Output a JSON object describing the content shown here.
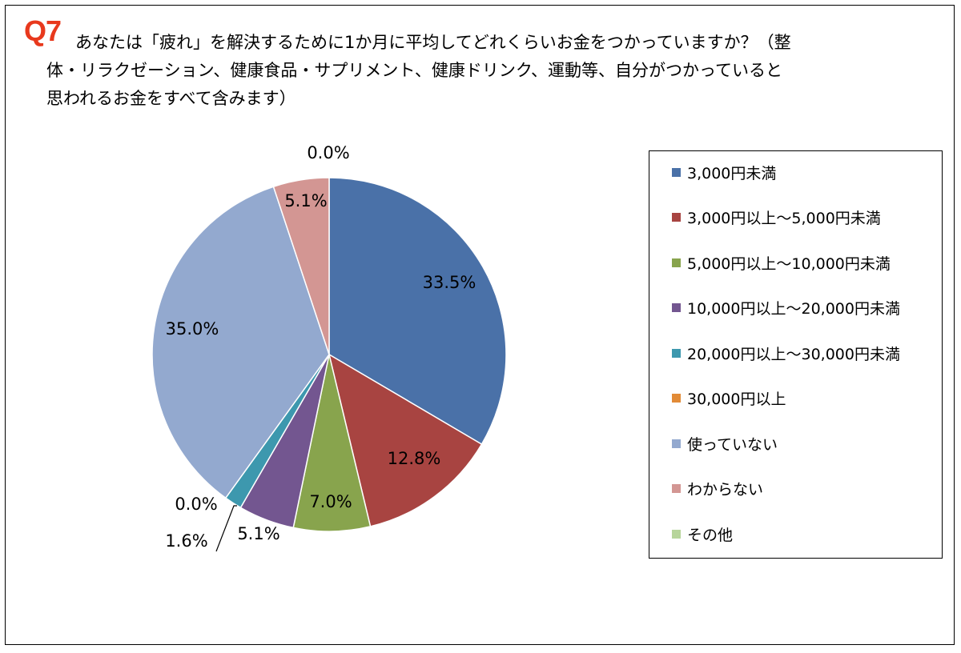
{
  "question": {
    "number": "Q7",
    "text": "あなたは「疲れ」を解決するために1か月に平均してどれくらいお金をつかっていますか？（整体・リラクゼーション、健康食品・サプリメント、健康ドリンク、運動等、自分がつかっていると思われるお金をすべて含みます）"
  },
  "chart_data": {
    "type": "pie",
    "title": "",
    "start_angle_deg": 0,
    "direction": "clockwise",
    "legend_placement": "right",
    "slices": [
      {
        "label": "3,000円未満",
        "value": 33.5,
        "display": "33.5%",
        "color": "#4a71a8"
      },
      {
        "label": "3,000円以上～5,000円未満",
        "value": 12.8,
        "display": "12.8%",
        "color": "#a84441"
      },
      {
        "label": "5,000円以上～10,000円未満",
        "value": 7.0,
        "display": "7.0%",
        "color": "#88a44d"
      },
      {
        "label": "10,000円以上～20,000円未満",
        "value": 5.1,
        "display": "5.1%",
        "color": "#735690"
      },
      {
        "label": "20,000円以上～30,000円未満",
        "value": 1.6,
        "display": "1.6%",
        "color": "#3d98ae"
      },
      {
        "label": "30,000円以上",
        "value": 0.0,
        "display": "0.0%",
        "color": "#e28b37"
      },
      {
        "label": "使っていない",
        "value": 35.0,
        "display": "35.0%",
        "color": "#93a9cf"
      },
      {
        "label": "わからない",
        "value": 5.1,
        "display": "5.1%",
        "color": "#d39693"
      },
      {
        "label": "その他",
        "value": 0.0,
        "display": "0.0%",
        "color": "#b7d59b"
      }
    ]
  }
}
